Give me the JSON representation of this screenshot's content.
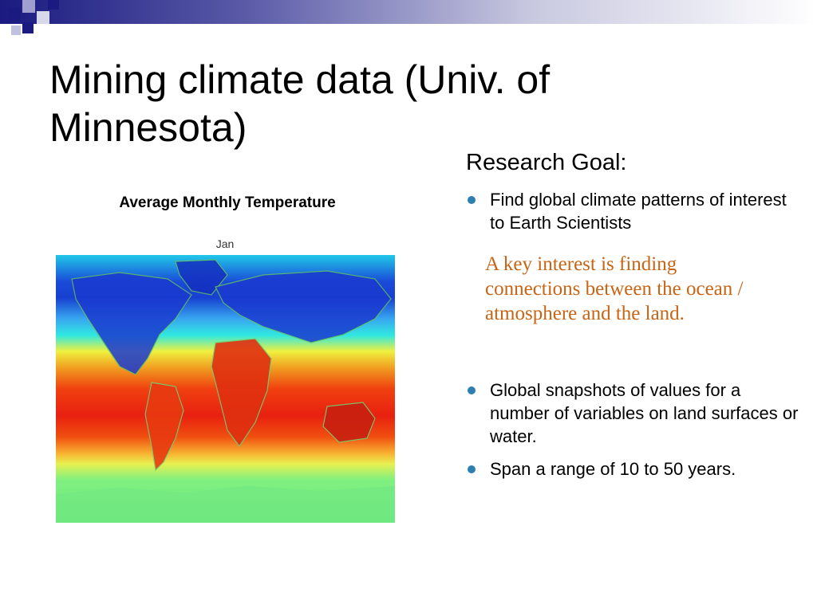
{
  "slide": {
    "title": "Mining climate data (Univ. of Minnesota)"
  },
  "figure": {
    "title": "Average Monthly Temperature",
    "month_label": "Jan"
  },
  "research": {
    "heading": "Research Goal:",
    "goal_bullet": "Find global climate patterns of interest to Earth Scientists",
    "note": "A key interest is finding connections between the ocean / atmosphere and the land.",
    "bullets": [
      "Global snapshots of values for a number of variables on land surfaces or water.",
      "Span a range of 10 to 50 years."
    ]
  },
  "colors": {
    "bullet": "#2e7eb0",
    "note_text": "#c86414",
    "banner_dark": "#1a1a80"
  }
}
